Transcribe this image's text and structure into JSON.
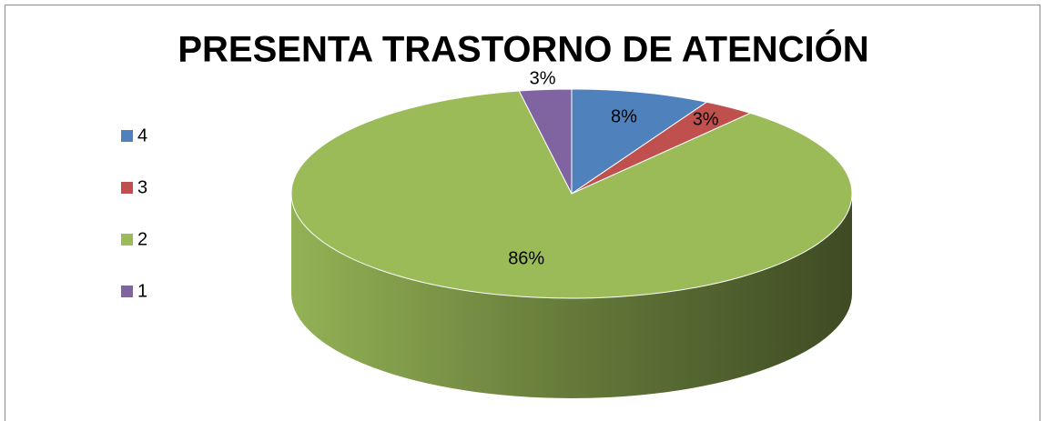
{
  "chart_data": {
    "type": "pie",
    "title": "PRESENTA TRASTORNO DE ATENCIÓN",
    "categories": [
      "4",
      "3",
      "2",
      "1"
    ],
    "values": [
      8,
      3,
      86,
      3
    ],
    "value_labels": [
      "8%",
      "3%",
      "86%",
      "3%"
    ],
    "colors": [
      "#4f81bd",
      "#c0504d",
      "#9bbb59",
      "#8064a2"
    ],
    "legend": "left"
  }
}
